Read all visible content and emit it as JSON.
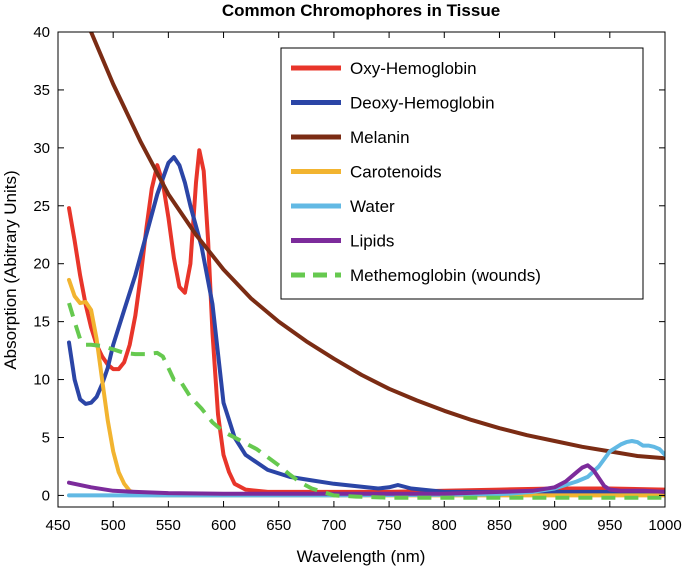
{
  "chart_data": {
    "type": "line",
    "title": "Common Chromophores in Tissue",
    "xlabel": "Wavelength (nm)",
    "ylabel": "Absorption (Abitrary Units)",
    "xlim": [
      450,
      1000
    ],
    "ylim": [
      -1,
      40
    ],
    "xticks": [
      450,
      500,
      550,
      600,
      650,
      700,
      750,
      800,
      850,
      900,
      950,
      1000
    ],
    "yticks": [
      0,
      5,
      10,
      15,
      20,
      25,
      30,
      35,
      40
    ],
    "xtick_labels": [
      "450",
      "500",
      "550",
      "600",
      "650",
      "700",
      "750",
      "800",
      "850",
      "900",
      "950",
      "1000"
    ],
    "ytick_labels": [
      "0",
      "5",
      "10",
      "15",
      "20",
      "25",
      "30",
      "35",
      "40"
    ],
    "legend_position": "top-right",
    "series": [
      {
        "name": "Oxy-Hemoglobin",
        "color": "#e8352a",
        "dash": "solid",
        "x": [
          460,
          465,
          470,
          475,
          480,
          485,
          490,
          495,
          500,
          505,
          510,
          515,
          520,
          525,
          530,
          535,
          540,
          545,
          550,
          555,
          560,
          565,
          570,
          575,
          578,
          582,
          586,
          590,
          595,
          600,
          605,
          610,
          620,
          640,
          660,
          700,
          750,
          800,
          850,
          900,
          950,
          1000
        ],
        "y": [
          24.8,
          22.0,
          19.0,
          16.5,
          14.5,
          13.0,
          12.0,
          11.3,
          10.9,
          10.9,
          11.5,
          13.0,
          15.5,
          19.0,
          23.0,
          26.5,
          28.5,
          27.0,
          24.0,
          20.5,
          18.0,
          17.5,
          20.0,
          27.0,
          29.8,
          28.0,
          22.0,
          14.0,
          7.0,
          3.5,
          2.0,
          1.0,
          0.5,
          0.3,
          0.3,
          0.3,
          0.3,
          0.4,
          0.5,
          0.6,
          0.6,
          0.5
        ]
      },
      {
        "name": "Deoxy-Hemoglobin",
        "color": "#2b45a6",
        "dash": "solid",
        "x": [
          460,
          465,
          470,
          475,
          480,
          485,
          490,
          495,
          500,
          505,
          510,
          520,
          530,
          540,
          550,
          555,
          560,
          565,
          570,
          580,
          590,
          600,
          605,
          610,
          620,
          640,
          660,
          680,
          700,
          720,
          740,
          750,
          758,
          770,
          800,
          850,
          900,
          950,
          1000
        ],
        "y": [
          13.2,
          10.0,
          8.3,
          7.9,
          8.0,
          8.5,
          9.6,
          11.0,
          13.0,
          14.5,
          16.0,
          19.0,
          22.5,
          26.0,
          28.7,
          29.2,
          28.5,
          27.0,
          25.0,
          21.5,
          16.5,
          8.0,
          6.5,
          5.0,
          3.5,
          2.2,
          1.6,
          1.3,
          1.0,
          0.8,
          0.6,
          0.7,
          0.9,
          0.6,
          0.3,
          0.3,
          0.3,
          0.3,
          0.3
        ]
      },
      {
        "name": "Melanin",
        "color": "#7b2c14",
        "dash": "solid",
        "x": [
          480,
          500,
          525,
          550,
          575,
          600,
          625,
          650,
          675,
          700,
          725,
          750,
          775,
          800,
          825,
          850,
          875,
          900,
          925,
          950,
          975,
          1000
        ],
        "y": [
          40.0,
          35.5,
          30.5,
          26.0,
          22.5,
          19.5,
          17.0,
          15.0,
          13.3,
          11.8,
          10.4,
          9.2,
          8.2,
          7.3,
          6.5,
          5.8,
          5.2,
          4.7,
          4.2,
          3.8,
          3.4,
          3.2
        ]
      },
      {
        "name": "Carotenoids",
        "color": "#f2b430",
        "dash": "solid",
        "x": [
          460,
          465,
          470,
          475,
          480,
          485,
          490,
          495,
          500,
          505,
          510,
          515,
          520,
          525,
          530,
          540,
          560,
          600,
          700,
          800,
          900,
          1000
        ],
        "y": [
          18.6,
          17.2,
          16.6,
          16.7,
          16.0,
          13.5,
          10.0,
          6.5,
          3.8,
          2.0,
          1.0,
          0.4,
          0.2,
          0.1,
          0.05,
          0.0,
          0.0,
          0.0,
          0.0,
          0.0,
          0.0,
          0.0
        ]
      },
      {
        "name": "Water",
        "color": "#62b9e4",
        "dash": "solid",
        "x": [
          460,
          500,
          600,
          700,
          800,
          850,
          880,
          900,
          920,
          930,
          940,
          950,
          960,
          965,
          970,
          975,
          980,
          985,
          990,
          995,
          1000
        ],
        "y": [
          0.0,
          0.0,
          0.0,
          0.0,
          0.05,
          0.1,
          0.3,
          0.6,
          1.2,
          1.6,
          2.5,
          3.8,
          4.4,
          4.6,
          4.7,
          4.6,
          4.3,
          4.3,
          4.2,
          4.0,
          3.5
        ]
      },
      {
        "name": "Lipids",
        "color": "#7c2b9b",
        "dash": "solid",
        "x": [
          460,
          480,
          500,
          520,
          550,
          600,
          650,
          700,
          750,
          800,
          850,
          880,
          900,
          910,
          920,
          925,
          930,
          935,
          940,
          945,
          950,
          960,
          980,
          1000
        ],
        "y": [
          1.1,
          0.7,
          0.4,
          0.3,
          0.2,
          0.15,
          0.15,
          0.15,
          0.15,
          0.15,
          0.3,
          0.4,
          0.7,
          1.2,
          2.0,
          2.4,
          2.6,
          2.2,
          1.5,
          0.8,
          0.5,
          0.4,
          0.4,
          0.3
        ]
      },
      {
        "name": "Methemoglobin (wounds)",
        "color": "#66c94f",
        "dash": "dashed",
        "x": [
          460,
          465,
          470,
          475,
          480,
          490,
          500,
          510,
          520,
          530,
          540,
          545,
          550,
          555,
          560,
          570,
          580,
          590,
          600,
          610,
          620,
          630,
          640,
          650,
          660,
          670,
          680,
          690,
          700,
          720,
          750,
          800,
          850,
          900,
          950,
          1000
        ],
        "y": [
          16.6,
          15.0,
          13.5,
          13.0,
          13.0,
          12.9,
          12.6,
          12.3,
          12.2,
          12.2,
          12.3,
          12.0,
          11.0,
          10.0,
          10.0,
          8.5,
          7.5,
          6.3,
          5.5,
          5.0,
          4.5,
          4.0,
          3.3,
          2.6,
          1.8,
          1.1,
          0.6,
          0.3,
          0.0,
          -0.1,
          -0.2,
          -0.2,
          -0.2,
          -0.2,
          -0.2,
          -0.2
        ]
      }
    ]
  }
}
